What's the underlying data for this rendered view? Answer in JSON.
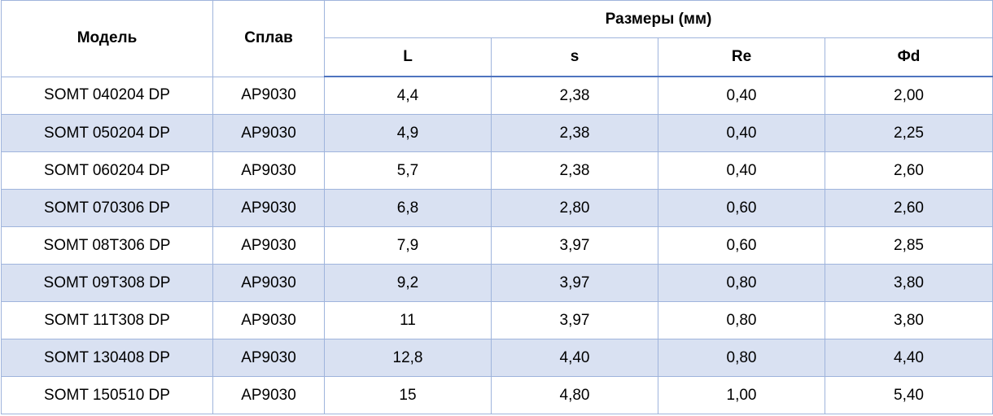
{
  "table": {
    "header": {
      "model": "Модель",
      "alloy": "Сплав",
      "dimensions": "Размеры (мм)",
      "columns": [
        "L",
        "s",
        "Re",
        "Фd"
      ]
    },
    "rows": [
      [
        "SOMT 040204 DP",
        "AP9030",
        "4,4",
        "2,38",
        "0,40",
        "2,00"
      ],
      [
        "SOMT 050204 DP",
        "AP9030",
        "4,9",
        "2,38",
        "0,40",
        "2,25"
      ],
      [
        "SOMT 060204 DP",
        "AP9030",
        "5,7",
        "2,38",
        "0,40",
        "2,60"
      ],
      [
        "SOMT 070306 DP",
        "AP9030",
        "6,8",
        "2,80",
        "0,60",
        "2,60"
      ],
      [
        "SOMT 08T306 DP",
        "AP9030",
        "7,9",
        "3,97",
        "0,60",
        "2,85"
      ],
      [
        "SOMT 09T308 DP",
        "AP9030",
        "9,2",
        "3,97",
        "0,80",
        "3,80"
      ],
      [
        "SOMT 11T308 DP",
        "AP9030",
        "11",
        "3,97",
        "0,80",
        "3,80"
      ],
      [
        "SOMT 130408 DP",
        "AP9030",
        "12,8",
        "4,40",
        "0,80",
        "4,40"
      ],
      [
        "SOMT 150510 DP",
        "AP9030",
        "15",
        "4,80",
        "1,00",
        "5,40"
      ]
    ]
  }
}
